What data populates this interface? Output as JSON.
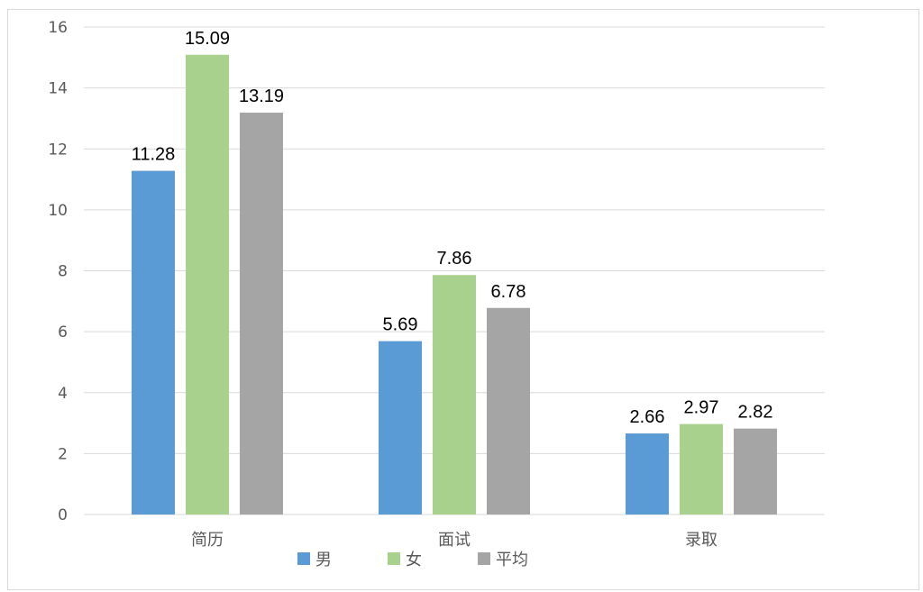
{
  "chart_data": {
    "type": "bar",
    "title": "",
    "xlabel": "",
    "ylabel": "",
    "categories": [
      "简历",
      "面试",
      "录取"
    ],
    "series": [
      {
        "name": "男",
        "color": "#5b9bd5",
        "values": [
          11.28,
          5.69,
          2.66
        ]
      },
      {
        "name": "女",
        "color": "#a9d18e",
        "values": [
          15.09,
          7.86,
          2.97
        ]
      },
      {
        "name": "平均",
        "color": "#a5a5a5",
        "values": [
          13.19,
          6.78,
          2.82
        ]
      }
    ],
    "ylim": [
      0,
      16
    ],
    "yticks": [
      0,
      2,
      4,
      6,
      8,
      10,
      12,
      14,
      16
    ],
    "grid": true,
    "legend_position": "bottom",
    "data_labels": true
  }
}
